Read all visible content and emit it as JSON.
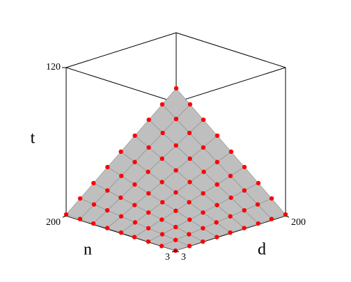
{
  "chart_data": {
    "type": "surface",
    "x_label": "n",
    "y_label": "d",
    "z_label": "t",
    "x": [
      3,
      28,
      52,
      77,
      101,
      126,
      151,
      175,
      200
    ],
    "y": [
      3,
      28,
      52,
      77,
      101,
      126,
      151,
      175,
      200
    ],
    "z": [
      [
        0,
        0.2,
        0.3,
        0.4,
        0.6,
        0.7,
        0.8,
        1.0,
        1.1
      ],
      [
        0.2,
        1.5,
        2.7,
        4.0,
        5.3,
        6.6,
        7.9,
        9.2,
        10.5
      ],
      [
        0.3,
        2.7,
        5.1,
        7.5,
        9.8,
        12.3,
        14.7,
        17.1,
        19.5
      ],
      [
        0.4,
        4.0,
        7.5,
        11.1,
        14.6,
        18.2,
        21.8,
        25.3,
        28.9
      ],
      [
        0.6,
        5.3,
        9.8,
        14.6,
        19.1,
        23.9,
        28.6,
        33.1,
        37.9
      ],
      [
        0.7,
        6.6,
        12.3,
        18.2,
        23.9,
        29.8,
        35.7,
        41.3,
        47.3
      ],
      [
        0.8,
        7.9,
        14.7,
        21.8,
        28.6,
        35.7,
        42.8,
        49.5,
        56.6
      ],
      [
        1.0,
        9.2,
        17.1,
        25.3,
        33.1,
        41.3,
        49.5,
        57.4,
        65.6
      ],
      [
        1.1,
        10.5,
        19.5,
        28.9,
        37.9,
        47.3,
        56.6,
        65.6,
        75
      ]
    ],
    "xlim": [
      3,
      200
    ],
    "ylim": [
      3,
      200
    ],
    "zlim": [
      0,
      120
    ],
    "xticks": [
      3,
      200
    ],
    "yticks": [
      3,
      200
    ],
    "zticks": [
      120
    ],
    "surface_color": "#bfbfbf",
    "point_color": "#ff0000"
  }
}
